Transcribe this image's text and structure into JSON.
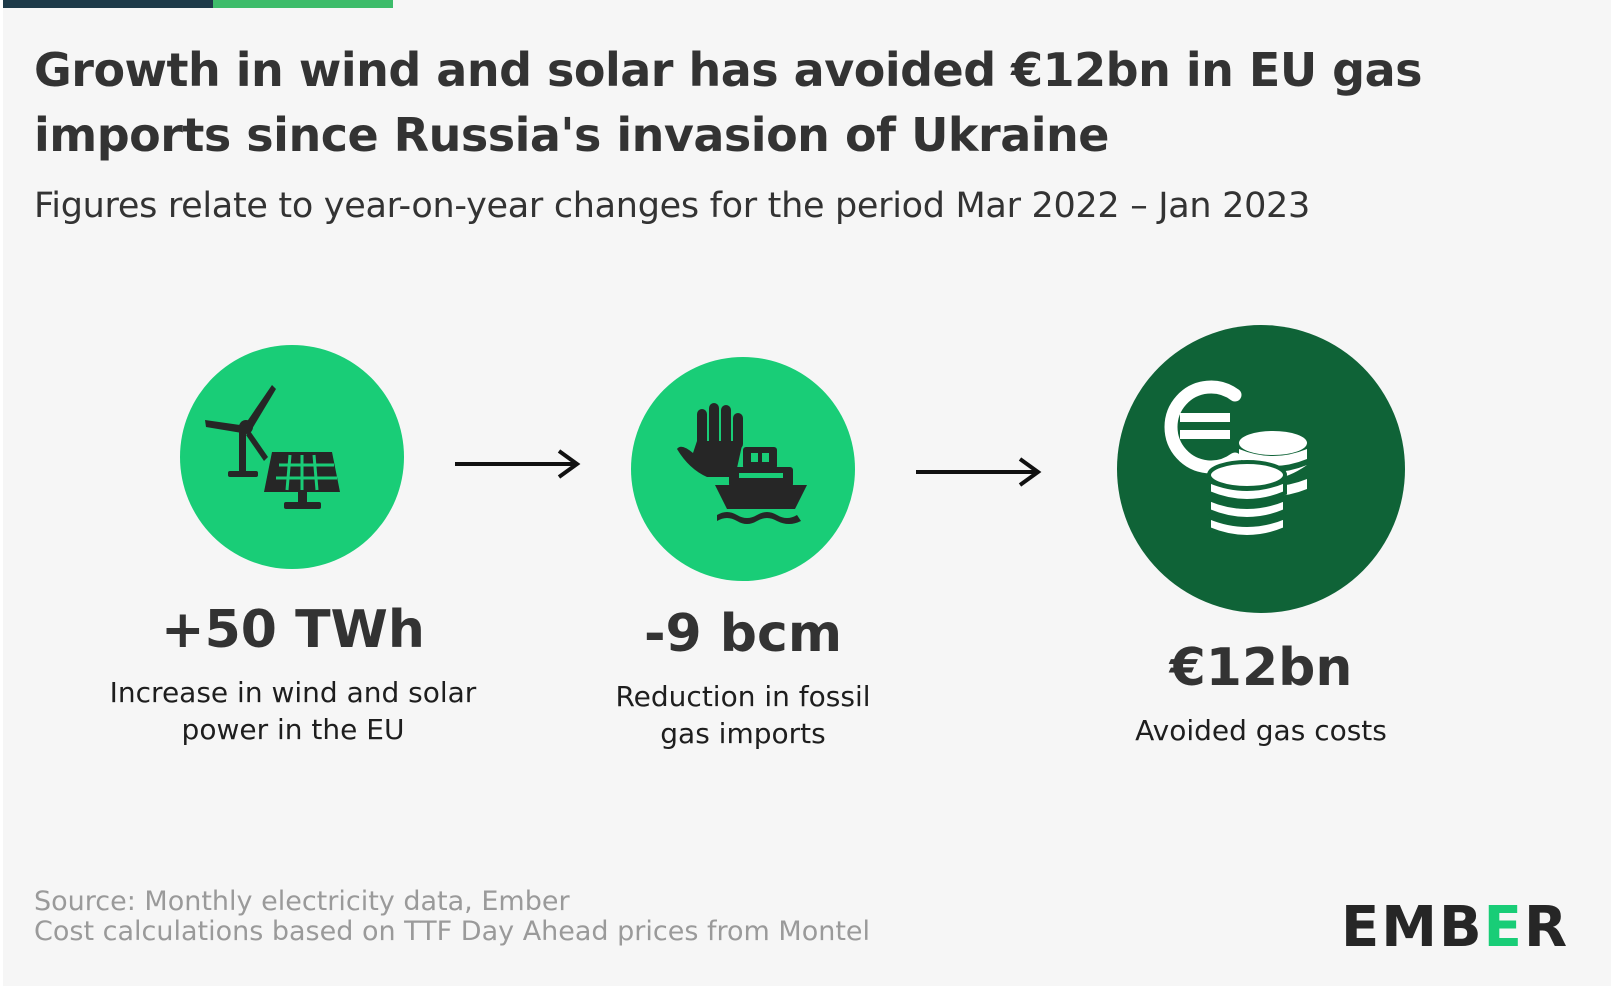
{
  "header": {
    "title": "Growth in wind and solar has avoided €12bn in EU gas imports since Russia's invasion of Ukraine",
    "subtitle": "Figures relate to year-on-year changes for the period Mar 2022 – Jan 2023"
  },
  "steps": [
    {
      "icon": "wind-solar-icon",
      "value": "+50 TWh",
      "description": "Increase in wind and solar power in the EU",
      "color": "#19cd77"
    },
    {
      "icon": "stop-gas-ship-icon",
      "value": "-9 bcm",
      "description": "Reduction in fossil gas imports",
      "color": "#19cd77"
    },
    {
      "icon": "euro-coins-icon",
      "value": "€12bn",
      "description": "Avoided gas costs",
      "color": "#0f6337"
    }
  ],
  "footer": {
    "source_line1": "Source: Monthly electricity data, Ember",
    "source_line2": "Cost calculations based on TTF Day Ahead prices from Montel",
    "logo": "EMBER"
  },
  "colors": {
    "accent_green": "#19cd77",
    "dark_green": "#0f6337",
    "bar_dark": "#1d3a49"
  }
}
